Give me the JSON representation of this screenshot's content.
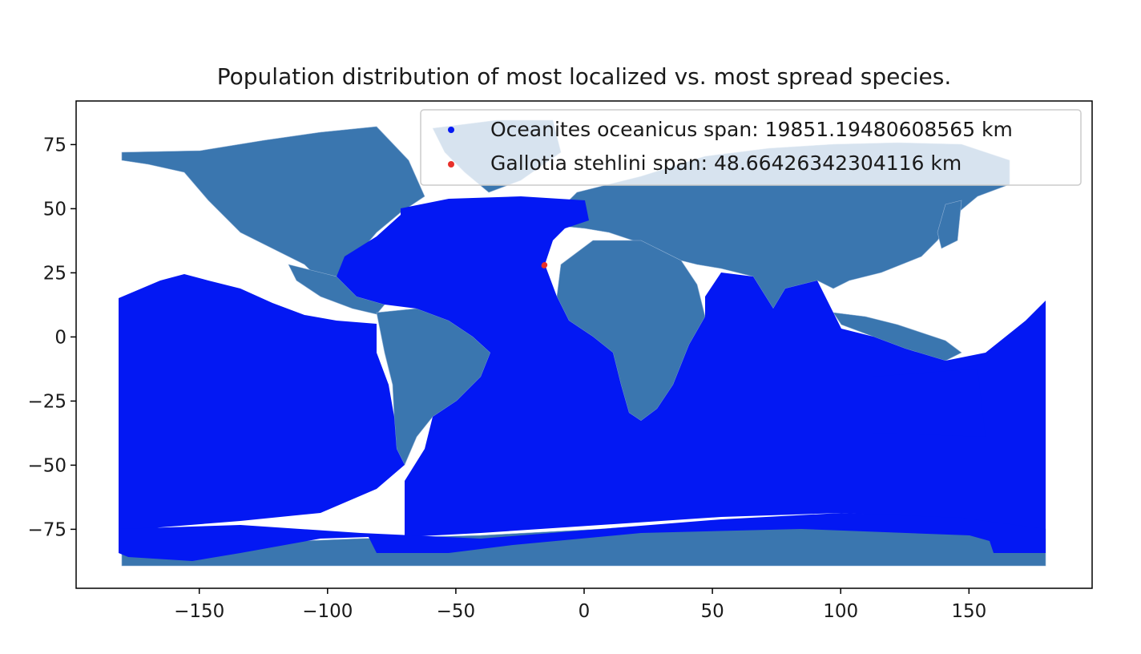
{
  "chart_data": {
    "type": "scatter",
    "title": "Population distribution of most localized vs. most spread species.",
    "xlabel": "",
    "ylabel": "",
    "xlim": [
      -198,
      198
    ],
    "ylim": [
      -98,
      92
    ],
    "xticks": [
      -150,
      -100,
      -50,
      0,
      50,
      100,
      150
    ],
    "xtick_labels": [
      "−150",
      "−100",
      "−50",
      "0",
      "50",
      "100",
      "150"
    ],
    "yticks": [
      75,
      50,
      25,
      0,
      -25,
      -50,
      -75
    ],
    "ytick_labels": [
      "75",
      "50",
      "25",
      "0",
      "−25",
      "−50",
      "−75"
    ],
    "grid": false,
    "legend_position": "top-right",
    "basemap": {
      "description": "world countries",
      "land_color": "#3a76af",
      "border_color": "#8fb0d4"
    },
    "series": [
      {
        "name": "Oceanites oceanicus span: 19851.19480608565 km",
        "color": "#0318f3",
        "marker": "circle",
        "extent_lon": [
          -180,
          180
        ],
        "extent_lat": [
          -85,
          48
        ],
        "points_dense": true
      },
      {
        "name": "Gallotia stehlini span: 48.66426342304116 km",
        "color": "#e8302a",
        "marker": "circle",
        "points": [
          [
            -15.6,
            27.8
          ],
          [
            -15.4,
            28.1
          ],
          [
            -15.5,
            28.0
          ]
        ]
      }
    ]
  }
}
